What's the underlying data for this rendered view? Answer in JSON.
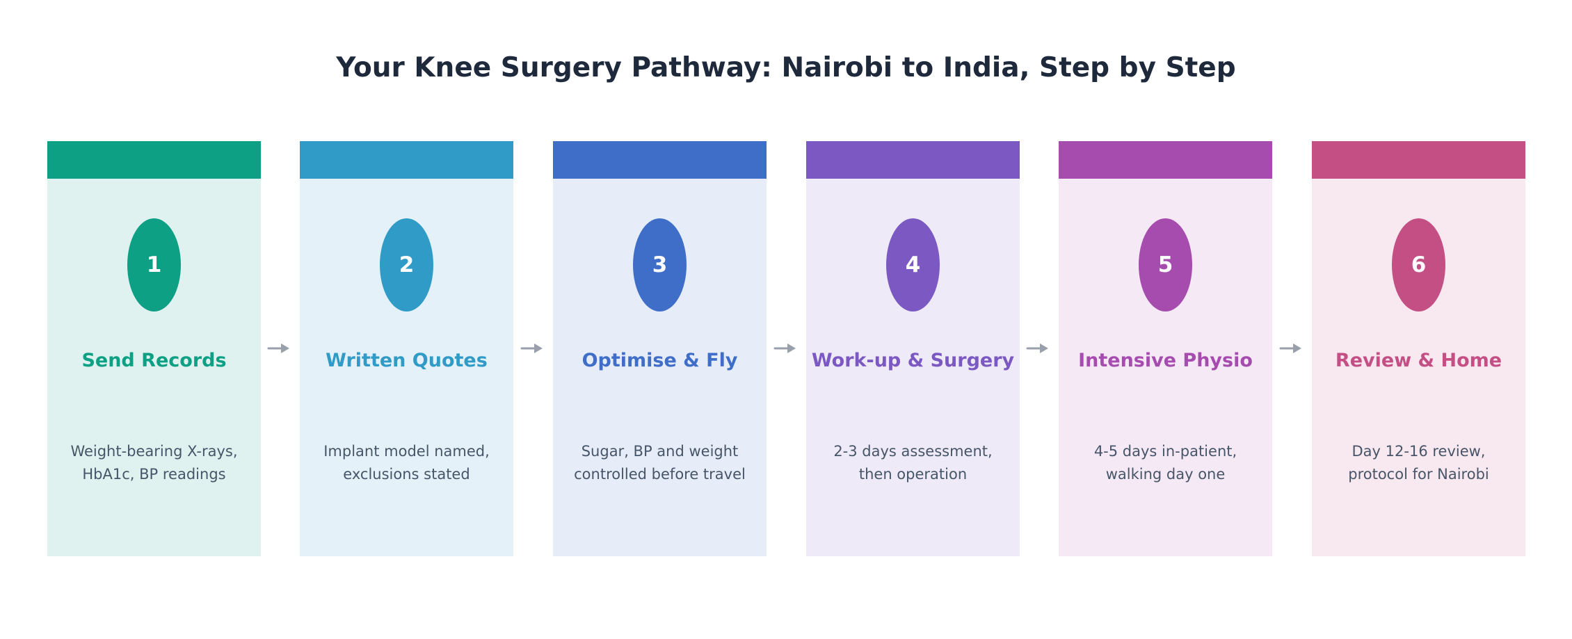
{
  "title": "Your Knee Surgery Pathway: Nairobi to India, Step by Step",
  "steps": [
    {
      "number": "1",
      "title": "Send Records",
      "desc_line1": "Weight-bearing X-rays,",
      "desc_line2": "HbA1c, BP readings",
      "accent": "#0ea085",
      "bg": "#e0f2ef"
    },
    {
      "number": "2",
      "title": "Written Quotes",
      "desc_line1": "Implant model named,",
      "desc_line2": "exclusions stated",
      "accent": "#2f9bc6",
      "bg": "#e4f1f8"
    },
    {
      "number": "3",
      "title": "Optimise & Fly",
      "desc_line1": "Sugar, BP and weight",
      "desc_line2": "controlled before travel",
      "accent": "#3f6ec8",
      "bg": "#e6ecf8"
    },
    {
      "number": "4",
      "title": "Work-up & Surgery",
      "desc_line1": "2-3 days assessment,",
      "desc_line2": "then operation",
      "accent": "#7b58c2",
      "bg": "#eeeaf8"
    },
    {
      "number": "5",
      "title": "Intensive Physio",
      "desc_line1": "4-5 days in-patient,",
      "desc_line2": "walking day one",
      "accent": "#a64caf",
      "bg": "#f5e9f6"
    },
    {
      "number": "6",
      "title": "Review & Home",
      "desc_line1": "Day 12-16 review,",
      "desc_line2": "protocol for Nairobi",
      "accent": "#c44f84",
      "bg": "#f8e8ef"
    }
  ],
  "arrow_color": "#9aa0ab"
}
